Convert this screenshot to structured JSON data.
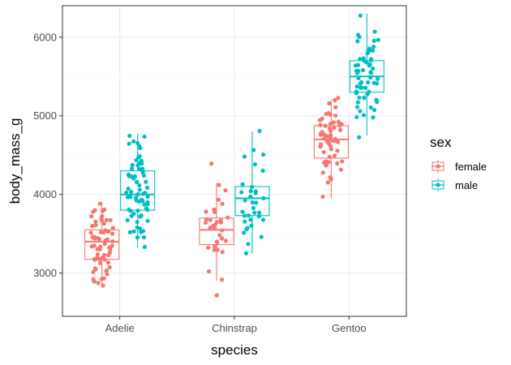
{
  "chart_data": {
    "type": "boxplot-jitter",
    "xlabel": "species",
    "ylabel": "body_mass_g",
    "categories": [
      "Adelie",
      "Chinstrap",
      "Gentoo"
    ],
    "ylim": [
      2450,
      6400
    ],
    "yticks": [
      3000,
      4000,
      5000,
      6000
    ],
    "y_minor_ticks": [
      3500,
      4500,
      5500
    ],
    "grid": true,
    "legend": {
      "title": "sex",
      "position": "right"
    },
    "series": [
      {
        "name": "female",
        "color": "#F8766D",
        "boxes": [
          {
            "category": "Adelie",
            "min": 2850,
            "q1": 3175,
            "median": 3400,
            "q3": 3550,
            "max": 3900
          },
          {
            "category": "Chinstrap",
            "min": 2900,
            "q1": 3362,
            "median": 3550,
            "q3": 3700,
            "max": 4150
          },
          {
            "category": "Gentoo",
            "min": 3950,
            "q1": 4462,
            "median": 4700,
            "q3": 4875,
            "max": 5200
          }
        ],
        "points": [
          [
            3400,
            3800,
            3250,
            3450,
            3625,
            3200,
            3700,
            3450,
            3325,
            3400,
            3800,
            3200,
            3150,
            3250,
            3300,
            3325,
            3550,
            3300,
            3150,
            3100,
            3000,
            3450,
            3500,
            3450,
            2900,
            3550,
            2850,
            3150,
            3600,
            2850,
            3350,
            3050,
            3600,
            3550,
            3700,
            3700,
            3550,
            3200,
            3800,
            3350,
            3500,
            3600,
            3550,
            3400,
            3300,
            3700,
            2900,
            3725,
            3075,
            2925,
            3750,
            3175,
            3825,
            3200,
            3900,
            2900,
            3350,
            3150,
            3450,
            3050,
            3275,
            3050,
            3325,
            3500,
            3425,
            3175,
            3400,
            3400,
            3050,
            3000,
            3475,
            3450,
            3700
          ],
          [
            3500,
            3900,
            3650,
            3525,
            3725,
            3950,
            3250,
            3750,
            4150,
            3700,
            3800,
            3775,
            3700,
            4050,
            3575,
            3050,
            3300,
            3700,
            3450,
            4400,
            3600,
            3400,
            2900,
            3800,
            3300,
            3350,
            3400,
            3600,
            3400,
            3650,
            3600,
            3650,
            3350,
            2700
          ],
          [
            4500,
            4450,
            4550,
            4800,
            4400,
            4650,
            4650,
            4200,
            4150,
            4800,
            5000,
            4400,
            5000,
            4600,
            4700,
            5050,
            5150,
            4950,
            4350,
            3950,
            4300,
            4900,
            4200,
            5100,
            4850,
            4400,
            4900,
            4300,
            4450,
            4200,
            4400,
            4700,
            4700,
            4750,
            5200,
            4700,
            4600,
            4750,
            4625,
            4725,
            4750,
            4600,
            4875,
            4950,
            4750,
            4850,
            4875,
            4625,
            4850,
            4975,
            4700,
            4575,
            5000,
            4650,
            4375,
            4925,
            4850,
            5200
          ]
        ]
      },
      {
        "name": "male",
        "color": "#00BFC4",
        "boxes": [
          {
            "category": "Adelie",
            "min": 3325,
            "q1": 3800,
            "median": 4000,
            "q3": 4300,
            "max": 4775
          },
          {
            "category": "Chinstrap",
            "min": 3250,
            "q1": 3731,
            "median": 3950,
            "q3": 4100,
            "max": 4800
          },
          {
            "category": "Gentoo",
            "min": 4750,
            "q1": 5300,
            "median": 5500,
            "q3": 5700,
            "max": 6300
          }
        ],
        "points": [
          [
            3750,
            3650,
            4675,
            3800,
            4400,
            4500,
            4200,
            3600,
            3950,
            3800,
            3550,
            3950,
            3900,
            3900,
            4150,
            3950,
            4650,
            3900,
            4400,
            4600,
            3425,
            4150,
            4300,
            4050,
            3700,
            3800,
            3750,
            4400,
            4050,
            3950,
            4100,
            4450,
            3900,
            4150,
            4250,
            3900,
            4000,
            4700,
            4200,
            3550,
            3800,
            3950,
            4300,
            4450,
            4300,
            4350,
            4100,
            4725,
            4250,
            3550,
            3900,
            4775,
            4600,
            4275,
            4075,
            3775,
            3325,
            3500,
            3875,
            4000,
            4300,
            4000,
            3500,
            4475,
            3900,
            3975,
            4250,
            3475,
            3725,
            3650,
            4250,
            3750,
            4000
          ],
          [
            3900,
            3650,
            3700,
            3800,
            3725,
            3750,
            3900,
            4550,
            3600,
            3950,
            3775,
            3950,
            4050,
            4050,
            4300,
            4450,
            4500,
            3250,
            4800,
            3700,
            4100,
            3775,
            3350,
            3450,
            3600,
            4100,
            3700,
            3550,
            3500,
            4000,
            3650,
            4050,
            4400,
            3950
          ],
          [
            5700,
            5700,
            5400,
            5200,
            5150,
            5550,
            5850,
            5850,
            6300,
            5350,
            5700,
            5050,
            5100,
            5650,
            5550,
            5250,
            6050,
            5400,
            5250,
            5350,
            5700,
            4750,
            5550,
            5400,
            5300,
            5300,
            5000,
            5050,
            5000,
            5550,
            5300,
            5650,
            5700,
            5800,
            5550,
            5000,
            5100,
            5800,
            6000,
            5950,
            5450,
            5350,
            5600,
            5300,
            5550,
            5400,
            5650,
            5200,
            5925,
            5400,
            5950,
            5850,
            5750,
            6000,
            5400,
            5650,
            5500,
            5500,
            5850,
            5700,
            5200
          ]
        ]
      }
    ]
  }
}
